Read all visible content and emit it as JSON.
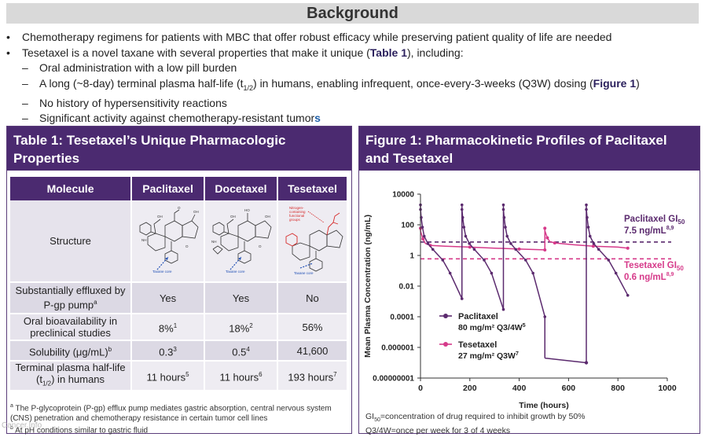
{
  "background": {
    "title": "Background",
    "b1": "Chemotherapy regimens for patients with MBC that offer robust efficacy while preserving patient quality of life are needed",
    "b2_pre": "Tesetaxel is a novel taxane with several properties that make it unique (",
    "b2_bold": "Table 1",
    "b2_post": "), including:",
    "s1": "Oral administration with a low pill burden",
    "s2_pre": "A long (~8-day) terminal plasma half-life (t",
    "s2_sub": "1/2",
    "s2_mid": ") in humans, enabling infrequent, once-every-3-weeks (Q3W) dosing (",
    "s2_bold": "Figure 1",
    "s2_post": ")",
    "s3": "No history of hypersensitivity reactions",
    "s4_pre": "Significant activity against chemotherapy-resistant tumor",
    "s4_end": "s",
    "dash": "–"
  },
  "table": {
    "title": "Table 1: Tesetaxel’s Unique Pharmacologic Properties",
    "headers": [
      "Molecule",
      "Paclitaxel",
      "Docetaxel",
      "Tesetaxel"
    ],
    "structure_label": "Structure",
    "taxane_core": "Taxane core",
    "nitrogen_label": "Nitrogen-containing functional groups",
    "rows": [
      {
        "label": "Substantially effluxed by P-gp pump",
        "sup": "a",
        "v": [
          "Yes",
          "Yes",
          "No"
        ]
      },
      {
        "label": "Oral bioavailability in preclinical studies",
        "v": [
          "8%",
          "18%",
          "56%"
        ],
        "vsup": [
          "1",
          "2",
          ""
        ]
      },
      {
        "label": "Solubility (μg/mL)",
        "sup": "b",
        "v": [
          "0.3",
          "0.5",
          "41,600"
        ],
        "vsup": [
          "3",
          "4",
          ""
        ]
      },
      {
        "label_pre": "Terminal plasma half-life (t",
        "label_sub": "1/2",
        "label_post": ") in humans",
        "v": [
          "11 hours",
          "11 hours",
          "193 hours"
        ],
        "vsup": [
          "5",
          "6",
          "7"
        ]
      }
    ],
    "fn_a_mark": "a",
    "fn_a": "The P-glycoprotein (P-gp) efflux pump mediates gastric absorption, central nervous system (CNS) penetration and chemotherapy resistance in certain tumor cell lines",
    "fn_b_mark": "b",
    "fn_b": "At pH conditions similar to gastric fluid"
  },
  "figure": {
    "title": "Figure 1: Pharmacokinetic Profiles of Paclitaxel and Tesetaxel",
    "footnote1_pre": "GI",
    "footnote1_sub": "50",
    "footnote1_post": "=concentration of drug required to inhibit growth by 50%",
    "footnote2": "Q3/4W=once per week for 3 of 4 weeks"
  },
  "chart_data": {
    "type": "line",
    "xlabel": "Time (hours)",
    "ylabel": "Mean Plasma Concentration (ng/mL)",
    "x_ticks": [
      "0",
      "200",
      "400",
      "600",
      "800",
      "1000"
    ],
    "y_ticks": [
      "10000",
      "100",
      "1",
      "0.01",
      "0.0001",
      "0.000001",
      "0.00000001"
    ],
    "xlim": [
      0,
      1000
    ],
    "ylim": [
      1e-08,
      10000
    ],
    "y_scale": "log",
    "colors": {
      "paclitaxel": "#5b2a6e",
      "tesetaxel": "#d63a8a"
    },
    "series": [
      {
        "name": "Paclitaxel",
        "legend_dose": "80 mg/m² Q3/4W",
        "legend_ref": "5",
        "segments": [
          [
            [
              0,
              2000
            ],
            [
              0,
              1000
            ],
            [
              3,
              300
            ],
            [
              8,
              70
            ],
            [
              15,
              18
            ],
            [
              30,
              6
            ],
            [
              50,
              2.5
            ],
            [
              90,
              0.5
            ],
            [
              120,
              0.07
            ],
            [
              168,
              0.0015
            ]
          ],
          [
            [
              168,
              2000
            ],
            [
              168,
              1000
            ],
            [
              171,
              300
            ],
            [
              176,
              70
            ],
            [
              183,
              18
            ],
            [
              198,
              6
            ],
            [
              218,
              2.5
            ],
            [
              258,
              0.5
            ],
            [
              288,
              0.07
            ],
            [
              336,
              0.0003
            ]
          ],
          [
            [
              336,
              2000
            ],
            [
              336,
              1000
            ],
            [
              339,
              300
            ],
            [
              344,
              70
            ],
            [
              351,
              18
            ],
            [
              366,
              6
            ],
            [
              386,
              2.5
            ],
            [
              426,
              0.5
            ],
            [
              456,
              0.07
            ],
            [
              504,
              0.0001
            ]
          ],
          [
            [
              672,
              2000
            ],
            [
              672,
              1000
            ],
            [
              675,
              300
            ],
            [
              680,
              70
            ],
            [
              687,
              18
            ],
            [
              702,
              6
            ],
            [
              722,
              2.5
            ],
            [
              762,
              0.5
            ],
            [
              792,
              0.07
            ],
            [
              840,
              0.0025
            ]
          ]
        ],
        "drops": [
          [
            168,
            0.0015,
            168,
            1000
          ],
          [
            336,
            0.0003,
            336,
            1000
          ],
          [
            504,
            0.0001,
            504,
            2e-07
          ],
          [
            504,
            2e-07,
            672,
            1e-07
          ],
          [
            672,
            1e-07,
            672,
            1000
          ]
        ]
      },
      {
        "name": "Tesetaxel",
        "legend_dose": "27 mg/m² Q3W",
        "legend_ref": "7",
        "segments": [
          [
            [
              0,
              60
            ],
            [
              0,
              40
            ],
            [
              10,
              12
            ],
            [
              20,
              6
            ],
            [
              40,
              4.5
            ],
            [
              100,
              4
            ],
            [
              200,
              3.5
            ],
            [
              300,
              3
            ],
            [
              400,
              2.6
            ],
            [
              504,
              2.3
            ]
          ],
          [
            [
              504,
              60
            ],
            [
              504,
              40
            ],
            [
              514,
              14
            ],
            [
              524,
              8
            ],
            [
              544,
              6.5
            ],
            [
              620,
              5
            ],
            [
              700,
              4
            ],
            [
              800,
              3.5
            ],
            [
              840,
              3
            ]
          ]
        ]
      }
    ],
    "gi50": [
      {
        "label_pre": "Paclitaxel GI",
        "label_sub": "50",
        "value": "7.5 ng/mL",
        "ref": "8,9",
        "y": 7.5
      },
      {
        "label_pre": "Tesetaxel GI",
        "label_sub": "50",
        "value": "0.6 ng/mL",
        "ref": "8,9",
        "y": 0.6
      }
    ]
  },
  "watermark": "Cancer.Info"
}
